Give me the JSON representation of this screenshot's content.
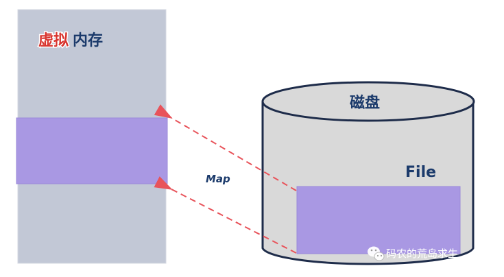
{
  "memory": {
    "label_highlight": "虚拟",
    "label_rest": "内存"
  },
  "disk": {
    "label": "磁盘",
    "file_label": "File"
  },
  "mapping": {
    "label": "Map"
  },
  "watermark": {
    "text": "码农的荒岛求生"
  },
  "colors": {
    "memory_bg": "#c2c8d6",
    "region": "#a998e3",
    "disk_fill": "#d9d9d9",
    "arrow": "#e8535a",
    "text": "#1b3a6b",
    "highlight_text": "#d8342e"
  }
}
